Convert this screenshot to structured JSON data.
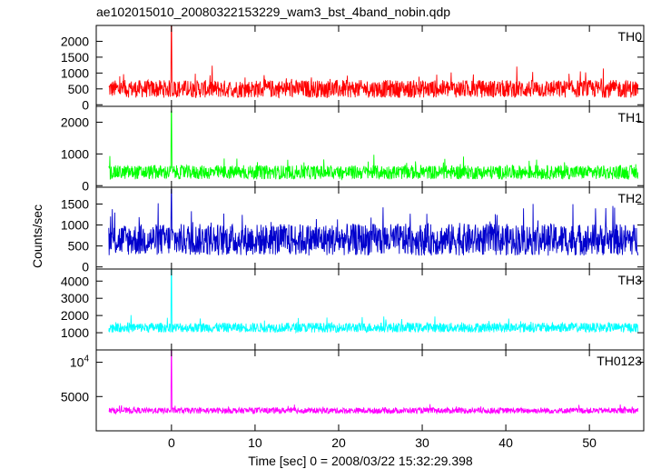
{
  "chart_data": {
    "type": "line",
    "title": "ae102015010_20080322153229_wam3_bst_4band_nobin.qdp",
    "xlabel": "Time [sec] 0 = 2008/03/22 15:32:29.398",
    "ylabel": "Counts/sec",
    "xlim": [
      -9,
      56.5
    ],
    "xticks": [
      0,
      10,
      20,
      30,
      40,
      50
    ],
    "x_range": [
      -7.5,
      55.8
    ],
    "burst_time": 0.0,
    "series": [
      {
        "name": "TH0",
        "color": "#ff0000",
        "ylim": [
          -50,
          2500
        ],
        "yticks": [
          0,
          500,
          1000,
          1500,
          2000
        ],
        "ytick_labels": [
          "0",
          "500",
          "1000",
          "1500",
          "2000"
        ],
        "baseline": 500,
        "spread": 280,
        "spike_peak": 2500
      },
      {
        "name": "TH1",
        "color": "#00ff00",
        "ylim": [
          -50,
          2500
        ],
        "yticks": [
          0,
          1000,
          2000
        ],
        "ytick_labels": [
          "0",
          "1000",
          "2000"
        ],
        "baseline": 420,
        "spread": 220,
        "spike_peak": 2350
      },
      {
        "name": "TH2",
        "color": "#0000cd",
        "ylim": [
          -50,
          1900
        ],
        "yticks": [
          0,
          500,
          1000,
          1500
        ],
        "ytick_labels": [
          "0",
          "500",
          "1000",
          "1500"
        ],
        "baseline": 650,
        "spread": 380,
        "spike_peak": 1850
      },
      {
        "name": "TH3",
        "color": "#00ffff",
        "ylim": [
          0,
          4700
        ],
        "yticks": [
          1000,
          2000,
          3000,
          4000
        ],
        "ytick_labels": [
          "1000",
          "2000",
          "3000",
          "4000"
        ],
        "baseline": 1300,
        "spread": 280,
        "spike_peak": 4700
      },
      {
        "name": "TH0123",
        "color": "#ff00ff",
        "ylim": [
          0,
          11800
        ],
        "yticks": [
          5000,
          10000
        ],
        "ytick_labels": [
          "5000",
          "10^4"
        ],
        "baseline": 2950,
        "spread": 420,
        "spike_peak": 11800
      }
    ]
  }
}
